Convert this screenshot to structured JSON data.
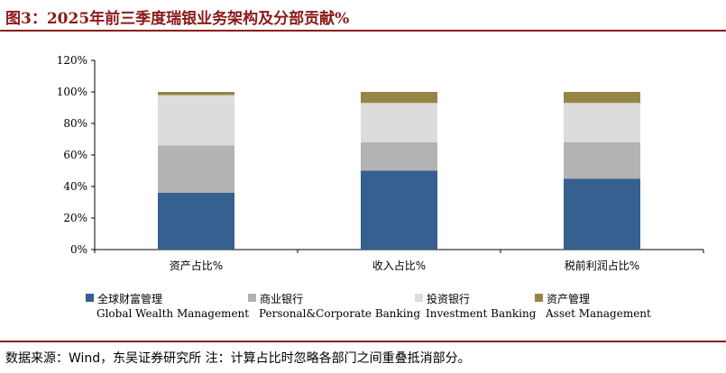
{
  "figure": {
    "title": "图3：2025年前三季度瑞银业务架构及分部贡献%",
    "source": "数据来源：Wind，东吴证券研究所 注：计算占比时忽略各部门之间重叠抵消部分。"
  },
  "chart_data": {
    "type": "bar",
    "stacked": true,
    "categories": [
      "资产占比%",
      "收入占比%",
      "税前利润占比%"
    ],
    "ylim": [
      0,
      120
    ],
    "yticks": [
      "0%",
      "20%",
      "40%",
      "60%",
      "80%",
      "100%",
      "120%"
    ],
    "grid": false,
    "legend_position": "bottom",
    "series": [
      {
        "name": "全球财富管理",
        "name_en": "Global Wealth Management",
        "color": "#35608f",
        "values": [
          36,
          50,
          45
        ]
      },
      {
        "name": "商业银行",
        "name_en": "Personal&Corporate Banking",
        "color": "#b3b3b3",
        "values": [
          30,
          18,
          23
        ]
      },
      {
        "name": "投资银行",
        "name_en": "Investment Banking",
        "color": "#dcdcdc",
        "values": [
          32,
          25,
          25
        ]
      },
      {
        "name": "资产管理",
        "name_en": "Asset Management",
        "color": "#968646",
        "values": [
          2,
          7,
          7
        ]
      }
    ]
  }
}
